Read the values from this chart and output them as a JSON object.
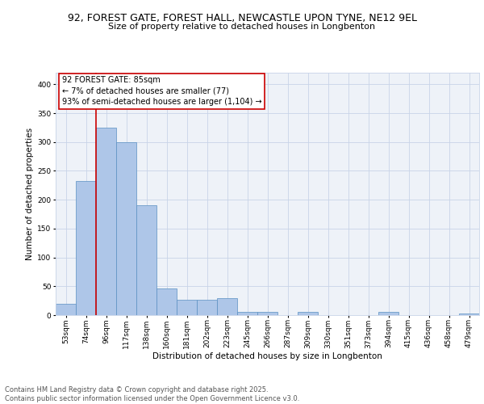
{
  "title_line1": "92, FOREST GATE, FOREST HALL, NEWCASTLE UPON TYNE, NE12 9EL",
  "title_line2": "Size of property relative to detached houses in Longbenton",
  "xlabel": "Distribution of detached houses by size in Longbenton",
  "ylabel": "Number of detached properties",
  "categories": [
    "53sqm",
    "74sqm",
    "96sqm",
    "117sqm",
    "138sqm",
    "160sqm",
    "181sqm",
    "202sqm",
    "223sqm",
    "245sqm",
    "266sqm",
    "287sqm",
    "309sqm",
    "330sqm",
    "351sqm",
    "373sqm",
    "394sqm",
    "415sqm",
    "436sqm",
    "458sqm",
    "479sqm"
  ],
  "values": [
    20,
    232,
    325,
    300,
    190,
    46,
    27,
    27,
    29,
    5,
    6,
    0,
    5,
    0,
    0,
    0,
    5,
    0,
    0,
    0,
    3
  ],
  "bar_color": "#aec6e8",
  "bar_edge_color": "#5a8fc2",
  "grid_color": "#c8d4e8",
  "background_color": "#eef2f8",
  "annotation_box_text": "92 FOREST GATE: 85sqm\n← 7% of detached houses are smaller (77)\n93% of semi-detached houses are larger (1,104) →",
  "annotation_box_color": "#ffffff",
  "annotation_box_edge_color": "#cc0000",
  "marker_line_color": "#cc0000",
  "ylim": [
    0,
    420
  ],
  "yticks": [
    0,
    50,
    100,
    150,
    200,
    250,
    300,
    350,
    400
  ],
  "footnote": "Contains HM Land Registry data © Crown copyright and database right 2025.\nContains public sector information licensed under the Open Government Licence v3.0.",
  "title_fontsize": 9,
  "subtitle_fontsize": 8,
  "axis_label_fontsize": 7.5,
  "tick_fontsize": 6.5,
  "footnote_fontsize": 6,
  "ann_fontsize": 7
}
